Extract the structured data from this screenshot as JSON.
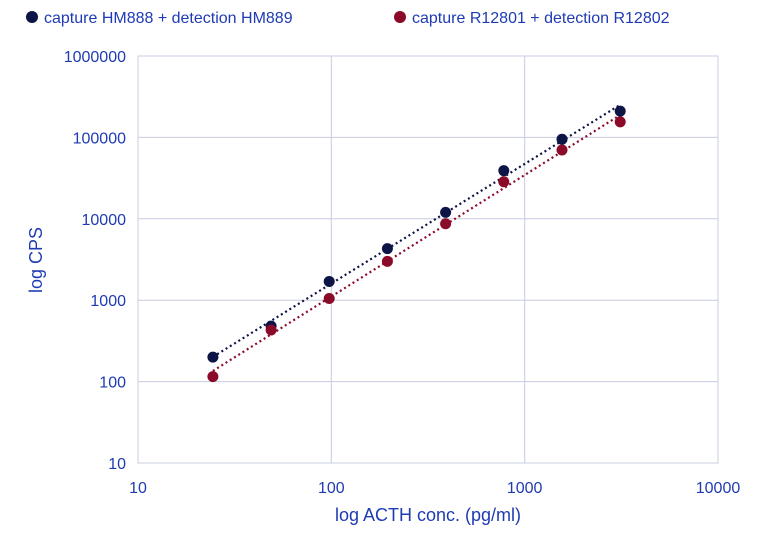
{
  "chart_data": {
    "type": "scatter",
    "xscale": "log",
    "yscale": "log",
    "xlim": [
      10,
      10000
    ],
    "ylim": [
      10,
      1000000
    ],
    "x_ticks": [
      "10",
      "100",
      "1000",
      "10000"
    ],
    "y_ticks": [
      "10",
      "100",
      "1000",
      "10000",
      "100000",
      "1000000"
    ],
    "xlabel": "log ACTH conc.  (pg/ml)",
    "ylabel": "log CPS",
    "grid": true,
    "legend_position": "top",
    "trendline": "power, dotted",
    "series": [
      {
        "name": "capture HM888 + detection HM889",
        "color": "#0d1446",
        "x": [
          24.4,
          48.8,
          97.5,
          195,
          390,
          780,
          1560,
          3120
        ],
        "y": [
          200,
          480,
          1700,
          4300,
          12000,
          39000,
          95000,
          210000
        ]
      },
      {
        "name": "capture R12801 + detection R12802",
        "color": "#8b0a2a",
        "x": [
          24.4,
          48.8,
          97.5,
          195,
          390,
          780,
          1560,
          3120
        ],
        "y": [
          115,
          430,
          1050,
          3000,
          8700,
          28500,
          70000,
          155000
        ]
      }
    ]
  }
}
